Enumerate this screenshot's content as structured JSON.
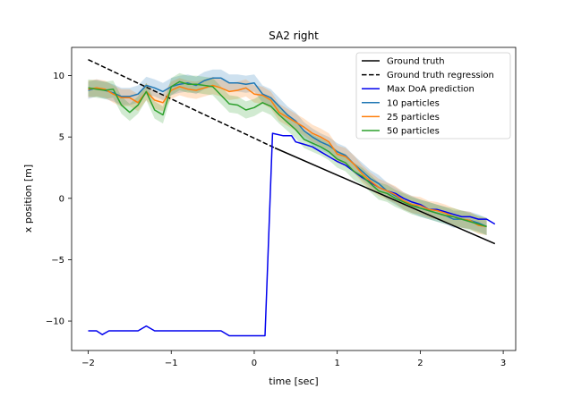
{
  "colors": {
    "ground_truth": "#000000",
    "ground_truth_regression": "#000000",
    "max_doa": "#0000ee",
    "p10": "#1f77b4",
    "p25": "#ff7f0e",
    "p50": "#2ca02c",
    "axes": "#000000"
  },
  "chart_data": {
    "type": "line",
    "title": "SA2 right",
    "xlabel": "time [sec]",
    "ylabel": "x position [m]",
    "xlim": [
      -2.2,
      3.15
    ],
    "ylim": [
      -12.4,
      12.3
    ],
    "xticks": [
      -2,
      -1,
      0,
      1,
      2,
      3
    ],
    "xtick_labels": [
      "−2",
      "−1",
      "0",
      "1",
      "2",
      "3"
    ],
    "yticks": [
      -10,
      -5,
      0,
      5,
      10
    ],
    "ytick_labels": [
      "−10",
      "−5",
      "0",
      "5",
      "10"
    ],
    "grid": false,
    "legend_position": "top-right",
    "series": [
      {
        "key": "ground_truth",
        "name": "Ground truth",
        "style": "solid",
        "x": [
          0.25,
          2.9
        ],
        "y": [
          4.1,
          -3.7
        ]
      },
      {
        "key": "ground_truth_regression",
        "name": "Ground truth regression",
        "style": "dashed",
        "x": [
          -2.0,
          0.25
        ],
        "y": [
          11.3,
          4.1
        ]
      },
      {
        "key": "max_doa",
        "name": "Max DoA prediction",
        "style": "solid",
        "x": [
          -2.0,
          -1.9,
          -1.83,
          -1.75,
          -1.6,
          -1.4,
          -1.3,
          -1.2,
          -1.1,
          -1.0,
          -0.8,
          -0.6,
          -0.4,
          -0.3,
          -0.2,
          0.0,
          0.13,
          0.22,
          0.35,
          0.45,
          0.5,
          0.6,
          0.7,
          0.8,
          0.9,
          1.0,
          1.1,
          1.2,
          1.3,
          1.4,
          1.5,
          1.6,
          1.7,
          1.8,
          1.9,
          2.0,
          2.1,
          2.2,
          2.3,
          2.4,
          2.5,
          2.6,
          2.7,
          2.8,
          2.9
        ],
        "y": [
          -10.8,
          -10.8,
          -11.1,
          -10.8,
          -10.8,
          -10.8,
          -10.4,
          -10.8,
          -10.8,
          -10.8,
          -10.8,
          -10.8,
          -10.8,
          -11.2,
          -11.2,
          -11.2,
          -11.2,
          5.3,
          5.1,
          5.1,
          4.6,
          4.4,
          4.2,
          3.8,
          3.4,
          3.0,
          2.7,
          2.2,
          1.7,
          1.3,
          0.9,
          0.6,
          0.4,
          0.0,
          -0.3,
          -0.5,
          -0.9,
          -0.9,
          -1.1,
          -1.3,
          -1.5,
          -1.5,
          -1.7,
          -1.7,
          -2.1
        ]
      },
      {
        "key": "p10",
        "name": "10 particles",
        "style": "solid",
        "band": 0.7,
        "x": [
          -2.0,
          -1.9,
          -1.8,
          -1.7,
          -1.6,
          -1.5,
          -1.4,
          -1.3,
          -1.2,
          -1.1,
          -1.0,
          -0.9,
          -0.8,
          -0.7,
          -0.6,
          -0.5,
          -0.4,
          -0.3,
          -0.2,
          -0.1,
          0.0,
          0.1,
          0.2,
          0.3,
          0.4,
          0.5,
          0.6,
          0.7,
          0.8,
          0.9,
          1.0,
          1.1,
          1.2,
          1.3,
          1.4,
          1.5,
          1.6,
          1.7,
          1.8,
          1.9,
          2.0,
          2.1,
          2.2,
          2.3,
          2.4,
          2.5,
          2.6,
          2.7,
          2.8
        ],
        "y": [
          8.8,
          9.0,
          8.8,
          8.6,
          8.3,
          8.3,
          8.5,
          9.2,
          9.0,
          8.7,
          9.1,
          9.3,
          9.4,
          9.2,
          9.6,
          9.8,
          9.8,
          9.4,
          9.4,
          9.3,
          9.4,
          8.5,
          8.2,
          7.5,
          6.8,
          6.3,
          5.5,
          5.0,
          4.6,
          4.3,
          3.8,
          3.5,
          2.8,
          2.2,
          1.6,
          1.2,
          0.6,
          0.2,
          -0.2,
          -0.5,
          -0.8,
          -1.0,
          -1.2,
          -1.4,
          -1.7,
          -1.7,
          -1.8,
          -2.0,
          -2.3
        ]
      },
      {
        "key": "p25",
        "name": "25 particles",
        "style": "solid",
        "band": 0.7,
        "x": [
          -2.0,
          -1.9,
          -1.8,
          -1.7,
          -1.6,
          -1.5,
          -1.4,
          -1.3,
          -1.2,
          -1.1,
          -1.0,
          -0.9,
          -0.8,
          -0.7,
          -0.6,
          -0.5,
          -0.4,
          -0.3,
          -0.2,
          -0.1,
          0.0,
          0.1,
          0.2,
          0.3,
          0.4,
          0.5,
          0.6,
          0.7,
          0.8,
          0.9,
          1.0,
          1.1,
          1.2,
          1.3,
          1.4,
          1.5,
          1.6,
          1.7,
          1.8,
          1.9,
          2.0,
          2.1,
          2.2,
          2.3,
          2.4,
          2.5,
          2.6,
          2.7,
          2.8
        ],
        "y": [
          8.9,
          9.0,
          8.9,
          8.5,
          8.2,
          8.2,
          7.8,
          8.7,
          8.0,
          7.8,
          8.8,
          9.1,
          8.9,
          8.8,
          9.0,
          9.2,
          9.0,
          8.7,
          8.8,
          9.0,
          8.5,
          8.4,
          8.0,
          7.0,
          6.6,
          6.2,
          5.8,
          5.3,
          5.0,
          4.6,
          3.6,
          3.4,
          2.8,
          2.0,
          1.4,
          0.9,
          0.6,
          0.3,
          -0.2,
          -0.5,
          -0.6,
          -0.9,
          -1.0,
          -1.2,
          -1.5,
          -1.7,
          -1.8,
          -2.2,
          -2.3
        ]
      },
      {
        "key": "p50",
        "name": "50 particles",
        "style": "solid",
        "band": 0.7,
        "x": [
          -2.0,
          -1.9,
          -1.8,
          -1.7,
          -1.6,
          -1.5,
          -1.4,
          -1.3,
          -1.2,
          -1.1,
          -1.0,
          -0.9,
          -0.8,
          -0.7,
          -0.6,
          -0.5,
          -0.4,
          -0.3,
          -0.2,
          -0.1,
          0.0,
          0.1,
          0.2,
          0.3,
          0.4,
          0.5,
          0.6,
          0.7,
          0.8,
          0.9,
          1.0,
          1.1,
          1.2,
          1.3,
          1.4,
          1.5,
          1.6,
          1.7,
          1.8,
          1.9,
          2.0,
          2.1,
          2.2,
          2.3,
          2.4,
          2.5,
          2.6,
          2.7,
          2.8
        ],
        "y": [
          9.0,
          8.9,
          8.8,
          8.9,
          7.6,
          7.0,
          7.6,
          8.7,
          7.2,
          6.8,
          9.1,
          9.5,
          9.3,
          9.3,
          9.2,
          9.1,
          8.4,
          7.7,
          7.6,
          7.2,
          7.4,
          7.8,
          7.5,
          6.8,
          6.2,
          5.6,
          4.8,
          4.5,
          4.2,
          3.8,
          3.2,
          2.9,
          2.2,
          1.8,
          1.2,
          0.6,
          0.4,
          0.0,
          -0.3,
          -0.6,
          -0.8,
          -1.0,
          -1.2,
          -1.4,
          -1.5,
          -1.7,
          -1.9,
          -2.1,
          -2.3
        ]
      }
    ]
  }
}
